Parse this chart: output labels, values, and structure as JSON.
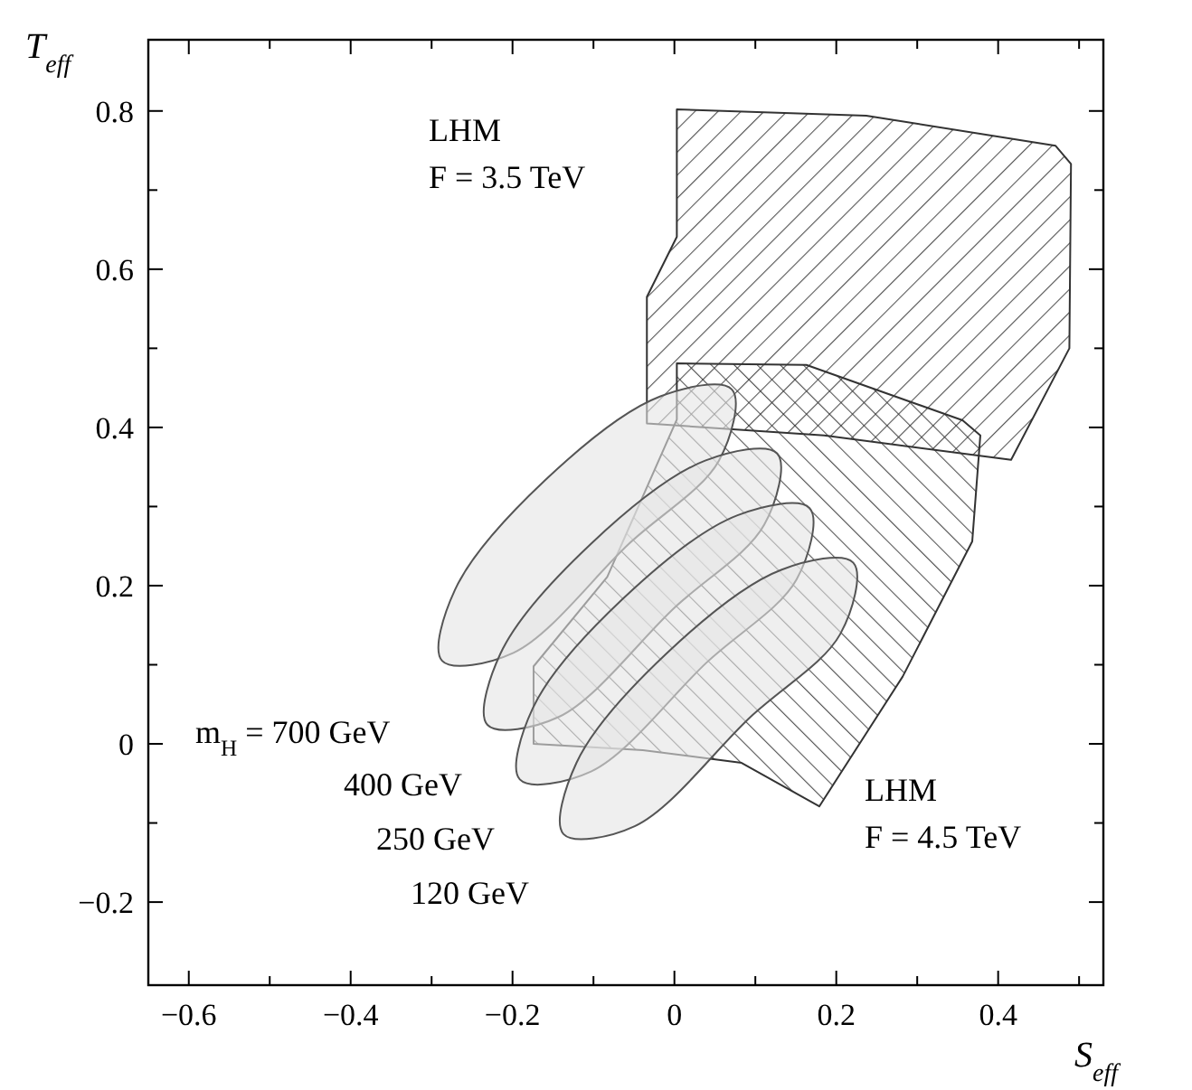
{
  "chart_data": {
    "type": "area",
    "xlabel": "S$_{eff}$",
    "ylabel": "T$_{eff}$",
    "xlim": [
      -0.65,
      0.53
    ],
    "ylim": [
      -0.305,
      0.89
    ],
    "xticks": [
      {
        "value": -0.6,
        "label": "−0.6"
      },
      {
        "value": -0.5,
        "label": null
      },
      {
        "value": -0.4,
        "label": "−0.4"
      },
      {
        "value": -0.3,
        "label": null
      },
      {
        "value": -0.2,
        "label": "−0.2"
      },
      {
        "value": -0.1,
        "label": null
      },
      0,
      {
        "value": 0.1,
        "label": null
      },
      0.2,
      {
        "value": 0.3,
        "label": null
      },
      0.4,
      {
        "value": 0.5,
        "label": null
      }
    ],
    "yticks": [
      {
        "value": -0.2,
        "label": "−0.2"
      },
      {
        "value": -0.1,
        "label": null
      },
      0,
      {
        "value": 0.1,
        "label": null
      },
      0.2,
      {
        "value": 0.3,
        "label": null
      },
      0.4,
      {
        "value": 0.5,
        "label": null
      },
      0.6,
      {
        "value": 0.7,
        "label": null
      },
      0.8
    ],
    "grid": false,
    "series": [
      {
        "color": "#e4e4e4",
        "x": [
          0.071,
          0.055,
          -0.056,
          -0.199,
          -0.287,
          -0.271,
          -0.16,
          -0.018
        ],
        "values": [
          0.448,
          0.358,
          0.253,
          0.115,
          0.105,
          0.195,
          0.333,
          0.439
        ]
      },
      {
        "color": "#e4e4e4",
        "x": [
          0.127,
          0.111,
          0.0,
          -0.143,
          -0.231,
          -0.215,
          -0.104,
          0.038
        ],
        "values": [
          0.367,
          0.277,
          0.172,
          0.034,
          0.024,
          0.114,
          0.252,
          0.358
        ]
      },
      {
        "color": "#e4e4e4",
        "x": [
          0.167,
          0.151,
          0.04,
          -0.103,
          -0.191,
          -0.175,
          -0.064,
          0.078
        ],
        "values": [
          0.298,
          0.208,
          0.103,
          -0.035,
          -0.045,
          0.045,
          0.183,
          0.289
        ]
      },
      {
        "color": "#e4e4e4",
        "x": [
          0.221,
          0.205,
          0.094,
          -0.049,
          -0.137,
          -0.121,
          -0.01,
          0.132
        ],
        "values": [
          0.229,
          0.139,
          0.034,
          -0.104,
          -0.114,
          -0.024,
          0.114,
          0.22
        ]
      },
      {
        "color": "#333333",
        "x": [
          0.003,
          0.237,
          0.471,
          0.49,
          0.488,
          0.416,
          0.185,
          -0.034,
          -0.034,
          0.003
        ],
        "values": [
          0.802,
          0.794,
          0.756,
          0.733,
          0.5,
          0.359,
          0.39,
          0.405,
          0.565,
          0.641
        ]
      },
      {
        "color": "#333333",
        "x": [
          0.003,
          0.163,
          0.356,
          0.378,
          0.368,
          0.282,
          0.179,
          0.083,
          -0.039,
          -0.174,
          -0.174,
          -0.083,
          0.003
        ],
        "values": [
          0.481,
          0.479,
          0.409,
          0.39,
          0.256,
          0.085,
          -0.079,
          -0.024,
          -0.008,
          0.0,
          0.098,
          0.211,
          0.41
        ]
      }
    ],
    "annotations": [
      "LHM\nF = 3.5 TeV",
      "m$_{H}$ = 700 GeV",
      "400 GeV",
      "250 GeV",
      "120 GeV",
      "LHM\nF = 4.5 TeV"
    ]
  }
}
